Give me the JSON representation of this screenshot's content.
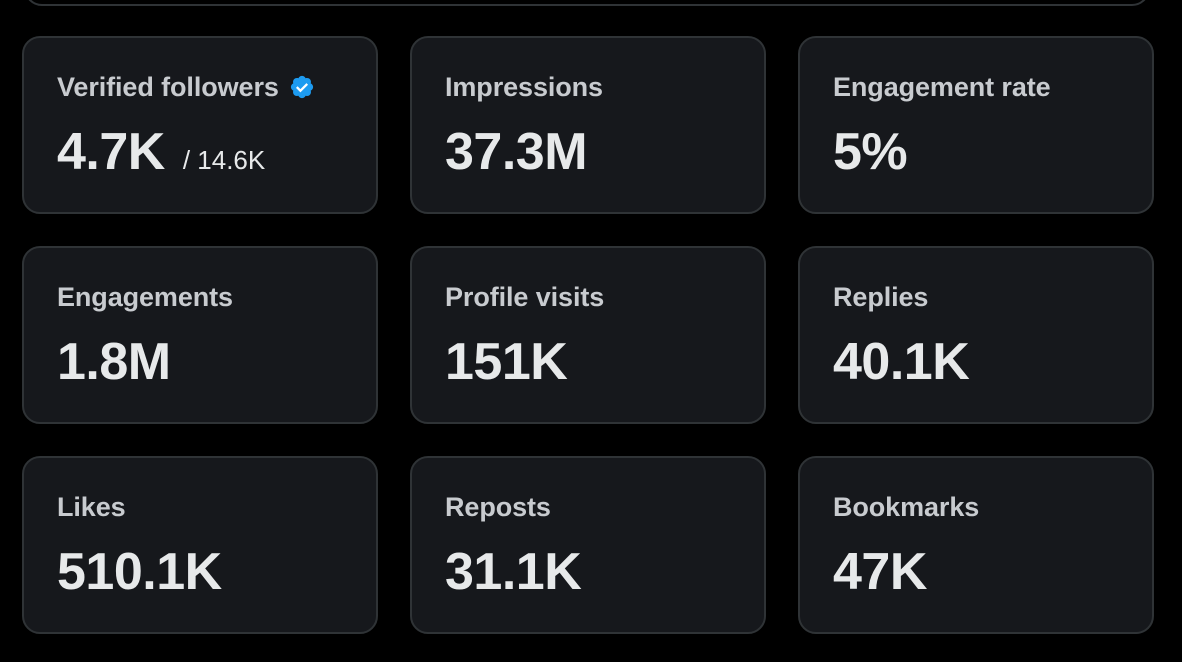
{
  "stats": [
    {
      "label": "Verified followers",
      "value": "4.7K",
      "sub": "/ 14.6K",
      "verified": true
    },
    {
      "label": "Impressions",
      "value": "37.3M"
    },
    {
      "label": "Engagement rate",
      "value": "5%"
    },
    {
      "label": "Engagements",
      "value": "1.8M"
    },
    {
      "label": "Profile visits",
      "value": "151K"
    },
    {
      "label": "Replies",
      "value": "40.1K"
    },
    {
      "label": "Likes",
      "value": "510.1K"
    },
    {
      "label": "Reposts",
      "value": "31.1K"
    },
    {
      "label": "Bookmarks",
      "value": "47K"
    }
  ],
  "colors": {
    "background": "#000000",
    "card": "#16181c",
    "border": "#2f3336",
    "label": "#c8cbcf",
    "value": "#e7e9ea",
    "verified_badge": "#1d9bf0"
  },
  "icons": {
    "verified": "verified-badge-icon"
  }
}
